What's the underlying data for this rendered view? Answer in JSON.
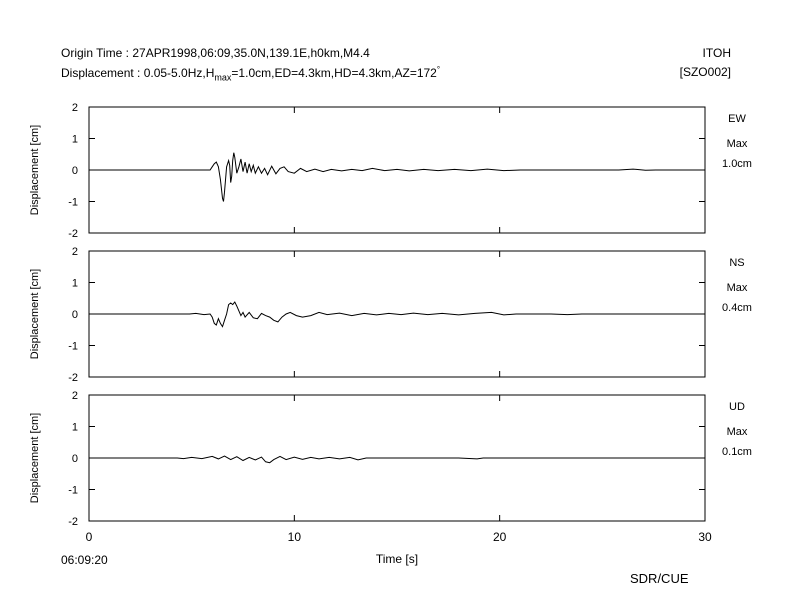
{
  "header": {
    "origin_prefix": "Origin Time : 27APR1998,06:09,35.0N,139.1E,h0km,M4.4",
    "disp_prefix": "Displacement : 0.05-5.0Hz,H",
    "disp_sub": "max",
    "disp_suffix": "=1.0cm,ED=4.3km,HD=4.3km,AZ=172",
    "disp_deg": "°",
    "station": "ITOH",
    "code": "[SZO002]"
  },
  "footer": {
    "start_time": "06:09:20",
    "credit": "SDR/CUE"
  },
  "chart_data": {
    "type": "line",
    "xlabel": "Time [s]",
    "ylabel": "Displacement [cm]",
    "xlim": [
      0,
      30
    ],
    "ylim": [
      -2,
      2
    ],
    "x_ticks": [
      "0",
      "10",
      "20",
      "30"
    ],
    "y_ticks": [
      "2",
      "1",
      "0",
      "-1",
      "-2"
    ],
    "panels": [
      {
        "component": "EW",
        "max_label": "Max",
        "max_value": "1.0cm",
        "trace": [
          [
            0,
            0
          ],
          [
            5.9,
            0
          ],
          [
            6.0,
            0.1
          ],
          [
            6.1,
            0.2
          ],
          [
            6.2,
            0.25
          ],
          [
            6.3,
            0.1
          ],
          [
            6.4,
            -0.3
          ],
          [
            6.5,
            -0.9
          ],
          [
            6.55,
            -1.0
          ],
          [
            6.6,
            -0.7
          ],
          [
            6.7,
            0.1
          ],
          [
            6.8,
            0.3
          ],
          [
            6.85,
            0.15
          ],
          [
            6.9,
            -0.4
          ],
          [
            6.95,
            -0.2
          ],
          [
            7.0,
            0.3
          ],
          [
            7.05,
            0.55
          ],
          [
            7.1,
            0.4
          ],
          [
            7.2,
            -0.1
          ],
          [
            7.3,
            0.1
          ],
          [
            7.4,
            0.35
          ],
          [
            7.5,
            -0.05
          ],
          [
            7.6,
            0.25
          ],
          [
            7.7,
            -0.1
          ],
          [
            7.8,
            0.2
          ],
          [
            7.9,
            -0.05
          ],
          [
            8.0,
            0.15
          ],
          [
            8.1,
            -0.1
          ],
          [
            8.25,
            0.1
          ],
          [
            8.4,
            -0.1
          ],
          [
            8.55,
            0.05
          ],
          [
            8.7,
            -0.15
          ],
          [
            8.9,
            0.12
          ],
          [
            9.1,
            -0.12
          ],
          [
            9.3,
            0.05
          ],
          [
            9.5,
            0.1
          ],
          [
            9.7,
            -0.05
          ],
          [
            10.0,
            -0.1
          ],
          [
            10.3,
            0.05
          ],
          [
            10.6,
            -0.05
          ],
          [
            11.0,
            0.03
          ],
          [
            11.4,
            -0.05
          ],
          [
            11.8,
            0.02
          ],
          [
            12.3,
            -0.03
          ],
          [
            12.8,
            0.02
          ],
          [
            13.3,
            -0.02
          ],
          [
            13.8,
            0.05
          ],
          [
            14.4,
            -0.02
          ],
          [
            15.0,
            0.02
          ],
          [
            15.6,
            -0.03
          ],
          [
            16.3,
            0.02
          ],
          [
            17.0,
            -0.02
          ],
          [
            17.8,
            0.02
          ],
          [
            18.6,
            -0.02
          ],
          [
            19.4,
            0.03
          ],
          [
            20.2,
            -0.02
          ],
          [
            21.0,
            0.0
          ],
          [
            22.0,
            0.0
          ],
          [
            24.0,
            0.0
          ],
          [
            25.8,
            0.0
          ],
          [
            26.5,
            0.03
          ],
          [
            27.1,
            -0.01
          ],
          [
            27.6,
            0.0
          ],
          [
            30,
            0
          ]
        ]
      },
      {
        "component": "NS",
        "max_label": "Max",
        "max_value": "0.4cm",
        "trace": [
          [
            0,
            0
          ],
          [
            4.9,
            0
          ],
          [
            5.2,
            0.02
          ],
          [
            5.6,
            -0.02
          ],
          [
            5.9,
            0.0
          ],
          [
            6.0,
            -0.1
          ],
          [
            6.1,
            -0.3
          ],
          [
            6.2,
            -0.35
          ],
          [
            6.3,
            -0.15
          ],
          [
            6.4,
            -0.3
          ],
          [
            6.5,
            -0.4
          ],
          [
            6.6,
            -0.2
          ],
          [
            6.7,
            0.0
          ],
          [
            6.8,
            0.3
          ],
          [
            6.9,
            0.35
          ],
          [
            7.0,
            0.3
          ],
          [
            7.1,
            0.38
          ],
          [
            7.2,
            0.25
          ],
          [
            7.3,
            0.1
          ],
          [
            7.4,
            -0.05
          ],
          [
            7.5,
            0.05
          ],
          [
            7.6,
            -0.1
          ],
          [
            7.8,
            0.05
          ],
          [
            8.0,
            -0.12
          ],
          [
            8.2,
            -0.15
          ],
          [
            8.4,
            0.02
          ],
          [
            8.6,
            -0.05
          ],
          [
            8.8,
            -0.1
          ],
          [
            9.0,
            -0.2
          ],
          [
            9.2,
            -0.25
          ],
          [
            9.4,
            -0.1
          ],
          [
            9.6,
            0.0
          ],
          [
            9.8,
            0.05
          ],
          [
            10.1,
            -0.05
          ],
          [
            10.4,
            -0.1
          ],
          [
            10.8,
            -0.05
          ],
          [
            11.2,
            0.05
          ],
          [
            11.6,
            -0.02
          ],
          [
            12.2,
            0.03
          ],
          [
            12.8,
            -0.05
          ],
          [
            13.4,
            0.02
          ],
          [
            14.0,
            -0.03
          ],
          [
            14.6,
            0.02
          ],
          [
            15.2,
            -0.02
          ],
          [
            15.8,
            0.03
          ],
          [
            16.5,
            -0.02
          ],
          [
            17.2,
            0.02
          ],
          [
            18.0,
            -0.03
          ],
          [
            18.8,
            0.02
          ],
          [
            19.6,
            0.05
          ],
          [
            20.2,
            -0.03
          ],
          [
            20.8,
            0.0
          ],
          [
            22.5,
            0.0
          ],
          [
            23.3,
            -0.02
          ],
          [
            24.0,
            0.0
          ],
          [
            30,
            0
          ]
        ]
      },
      {
        "component": "UD",
        "max_label": "Max",
        "max_value": "0.1cm",
        "trace": [
          [
            0,
            0
          ],
          [
            4.3,
            0
          ],
          [
            4.6,
            -0.02
          ],
          [
            5.0,
            0.02
          ],
          [
            5.5,
            -0.02
          ],
          [
            6.0,
            0.05
          ],
          [
            6.3,
            -0.03
          ],
          [
            6.6,
            0.06
          ],
          [
            6.9,
            -0.05
          ],
          [
            7.2,
            0.04
          ],
          [
            7.5,
            -0.08
          ],
          [
            7.8,
            0.02
          ],
          [
            8.1,
            -0.06
          ],
          [
            8.4,
            0.03
          ],
          [
            8.6,
            -0.12
          ],
          [
            8.8,
            -0.15
          ],
          [
            9.0,
            -0.05
          ],
          [
            9.3,
            0.05
          ],
          [
            9.6,
            -0.05
          ],
          [
            10.0,
            0.03
          ],
          [
            10.4,
            -0.04
          ],
          [
            10.8,
            0.02
          ],
          [
            11.2,
            -0.03
          ],
          [
            11.7,
            0.02
          ],
          [
            12.2,
            -0.03
          ],
          [
            12.7,
            0.02
          ],
          [
            13.1,
            -0.06
          ],
          [
            13.5,
            0.0
          ],
          [
            14.5,
            0.0
          ],
          [
            15.5,
            0.0
          ],
          [
            16.5,
            0.0
          ],
          [
            18.0,
            0.0
          ],
          [
            18.9,
            -0.03
          ],
          [
            19.2,
            0.0
          ],
          [
            30,
            0
          ]
        ]
      }
    ]
  }
}
